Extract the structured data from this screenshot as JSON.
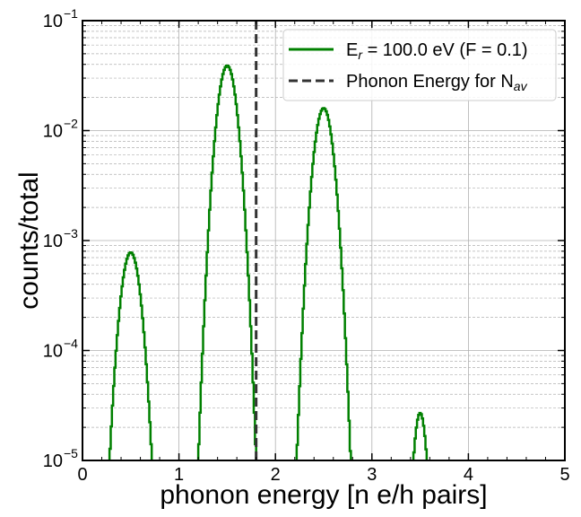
{
  "chart_data": {
    "type": "line",
    "xlabel": "phonon energy [n e/h pairs]",
    "ylabel": "counts/total",
    "xlim": [
      0,
      5
    ],
    "ylim": [
      1e-05,
      0.1
    ],
    "yscale": "log",
    "grid": true,
    "legend_position": "top-right",
    "x_ticks": [
      "0",
      "1",
      "2",
      "3",
      "4",
      "5"
    ],
    "y_ticks": [
      {
        "base": "10",
        "exp": "−5",
        "value": 1e-05
      },
      {
        "base": "10",
        "exp": "−4",
        "value": 0.0001
      },
      {
        "base": "10",
        "exp": "−3",
        "value": 0.001
      },
      {
        "base": "10",
        "exp": "−2",
        "value": 0.01
      },
      {
        "base": "10",
        "exp": "−1",
        "value": 0.1
      }
    ],
    "series": [
      {
        "name": "E_r = 100.0 eV (F = 0.1)",
        "legend_label": {
          "pre": "E",
          "sub": "r",
          "post": " = 100.0 eV (F = 0.1)"
        },
        "style": "step",
        "color": "#008000",
        "peaks": [
          {
            "center": 0.5,
            "peak": 0.00078,
            "range": [
              0.28,
              0.72
            ]
          },
          {
            "center": 1.5,
            "peak": 0.039,
            "range": [
              1.2,
              1.8
            ]
          },
          {
            "center": 2.5,
            "peak": 0.016,
            "range": [
              2.22,
              2.78
            ]
          },
          {
            "center": 3.5,
            "peak": 2.7e-05,
            "range": [
              3.43,
              3.57
            ]
          }
        ]
      },
      {
        "name": "Phonon Energy for N_av",
        "legend_label": {
          "pre": "Phonon Energy for N",
          "sub": "av",
          "post": ""
        },
        "style": "dashed-vertical",
        "color": "#333333",
        "x": 1.8
      }
    ]
  }
}
